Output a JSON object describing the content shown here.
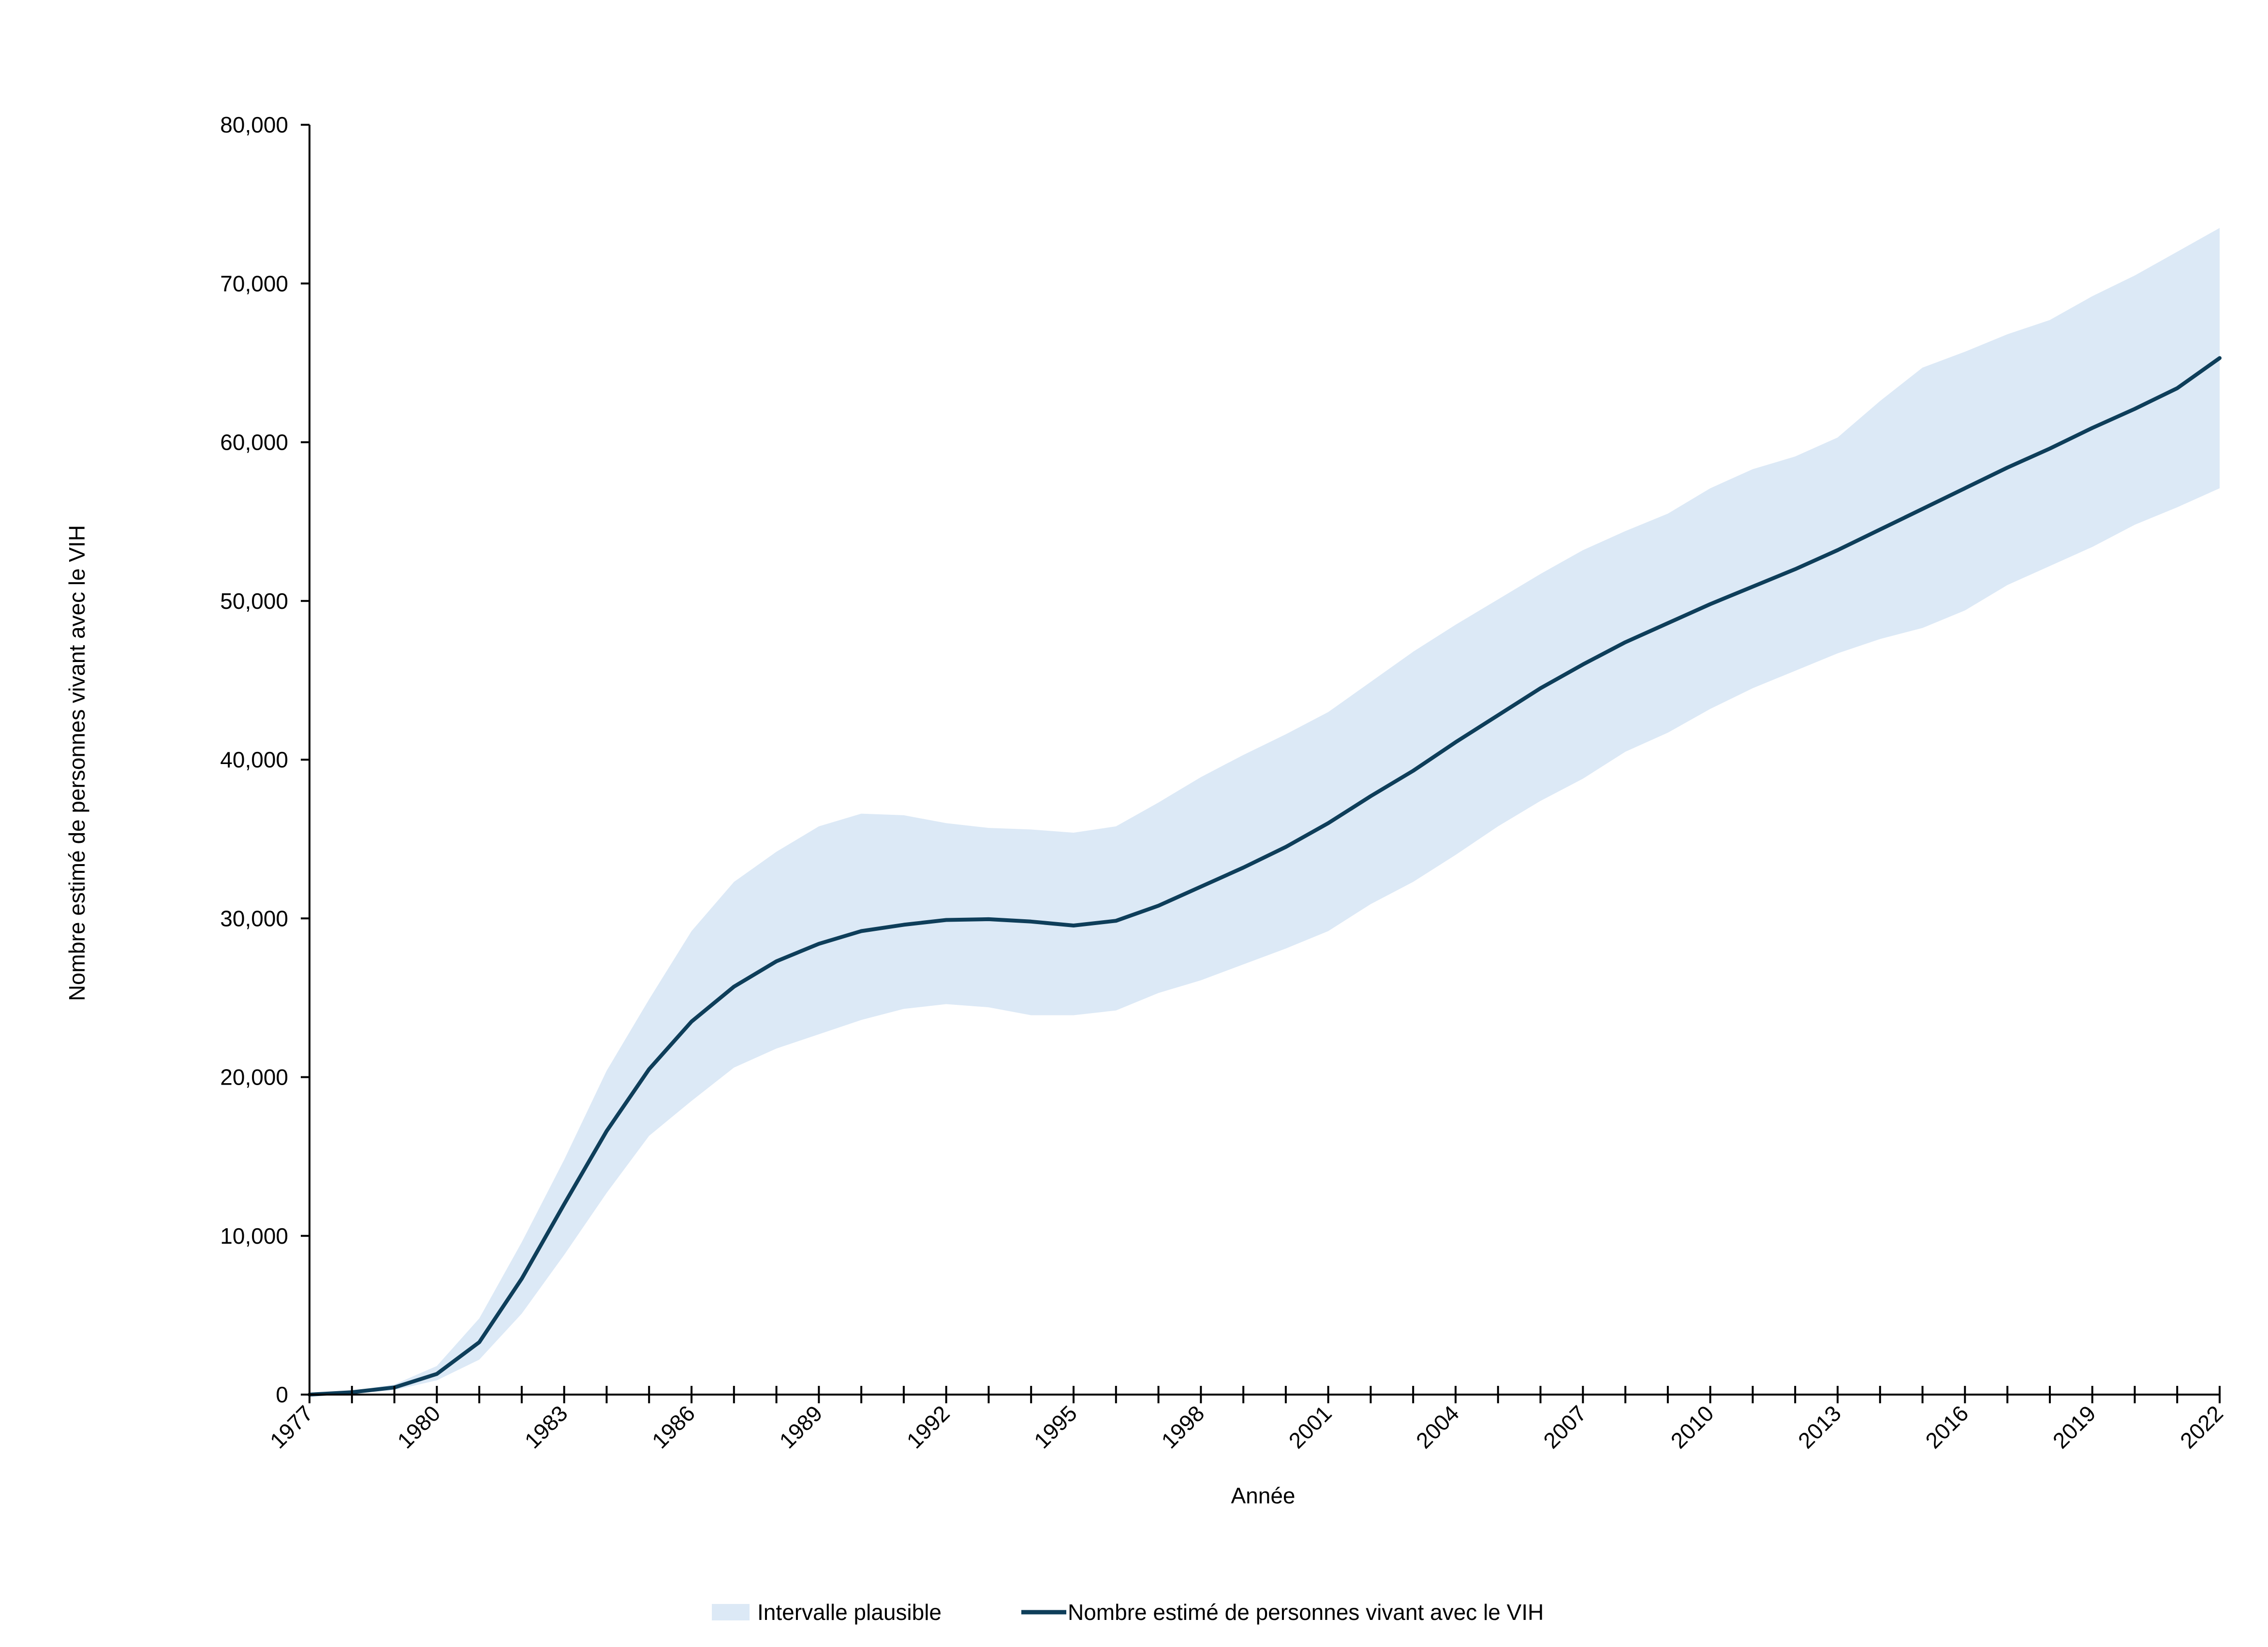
{
  "colors": {
    "line": "#0e3e5a",
    "band": "#dce9f6",
    "axis": "#000000"
  },
  "chart_data": {
    "type": "line",
    "xlabel": "Année",
    "ylabel": "Nombre estimé de personnes vivant avec le VIH",
    "xlim": [
      1977,
      2022
    ],
    "ylim": [
      0,
      80000
    ],
    "y_ticks": [
      0,
      10000,
      20000,
      30000,
      40000,
      50000,
      60000,
      70000,
      80000
    ],
    "y_tick_labels": [
      "0",
      "10,000",
      "20,000",
      "30,000",
      "40,000",
      "50,000",
      "60,000",
      "70,000",
      "80,000"
    ],
    "x_tick_labels": [
      "1977",
      "1980",
      "1983",
      "1986",
      "1989",
      "1992",
      "1995",
      "1998",
      "2001",
      "2004",
      "2007",
      "2010",
      "2013",
      "2016",
      "2019",
      "2022"
    ],
    "grid": false,
    "legend_position": "bottom",
    "x": [
      1977,
      1978,
      1979,
      1980,
      1981,
      1982,
      1983,
      1984,
      1985,
      1986,
      1987,
      1988,
      1989,
      1990,
      1991,
      1992,
      1993,
      1994,
      1995,
      1996,
      1997,
      1998,
      1999,
      2000,
      2001,
      2002,
      2003,
      2004,
      2005,
      2006,
      2007,
      2008,
      2009,
      2010,
      2011,
      2012,
      2013,
      2014,
      2015,
      2016,
      2017,
      2018,
      2019,
      2020,
      2021,
      2022
    ],
    "series": [
      {
        "name": "Nombre estimé de personnes vivant avec le VIH",
        "values": [
          0,
          150,
          450,
          1300,
          3300,
          7300,
          12000,
          16600,
          20500,
          23500,
          25700,
          27300,
          28400,
          29200,
          29600,
          29900,
          29950,
          29800,
          29550,
          29850,
          30800,
          32000,
          33200,
          34500,
          36000,
          37700,
          39300,
          41100,
          42800,
          44500,
          46000,
          47400,
          48600,
          49800,
          50900,
          52000,
          53200,
          54500,
          55800,
          57100,
          58400,
          59600,
          60900,
          62100,
          63400,
          65300
        ]
      },
      {
        "name": "Intervalle plausible",
        "lower": [
          0,
          60,
          280,
          900,
          2200,
          5100,
          8800,
          12700,
          16300,
          18500,
          20600,
          21800,
          22700,
          23600,
          24300,
          24600,
          24400,
          23900,
          23900,
          24200,
          25300,
          26100,
          27100,
          28100,
          29200,
          30900,
          32300,
          34000,
          35800,
          37400,
          38800,
          40500,
          41700,
          43200,
          44500,
          45600,
          46700,
          47600,
          48300,
          49400,
          51000,
          52200,
          53400,
          54800,
          55900,
          57100
        ],
        "upper": [
          0,
          220,
          640,
          1800,
          4800,
          9600,
          14800,
          20400,
          24900,
          29200,
          32300,
          34200,
          35800,
          36600,
          36500,
          36000,
          35700,
          35600,
          35400,
          35800,
          37300,
          38900,
          40300,
          41600,
          43000,
          44900,
          46800,
          48500,
          50100,
          51700,
          53200,
          54400,
          55500,
          57100,
          58300,
          59100,
          60300,
          62600,
          64700,
          65700,
          66800,
          67700,
          69200,
          70500,
          72000,
          73500
        ]
      }
    ]
  },
  "legend": {
    "band_label": "Intervalle plausible",
    "line_label": "Nombre estimé de personnes vivant avec le VIH"
  }
}
